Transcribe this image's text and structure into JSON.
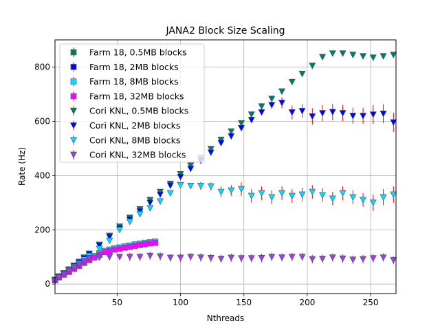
{
  "chart_data": {
    "type": "scatter",
    "title": "JANA2 Block Size Scaling",
    "xlabel": "Nthreads",
    "ylabel": "Rate (Hz)",
    "xlim": [
      1,
      270
    ],
    "ylim": [
      -35,
      900
    ],
    "xticks": [
      50,
      100,
      150,
      200,
      250
    ],
    "yticks": [
      0,
      200,
      400,
      600,
      800
    ],
    "grid": true,
    "legend_position": "top-left",
    "errorbar_color": "#ff0000",
    "series": [
      {
        "name": "Farm 18, 0.5MB blocks",
        "marker": "square",
        "color": "#007f3f",
        "x": [
          1,
          4,
          8,
          12,
          16,
          20,
          24,
          28,
          32,
          36,
          40,
          44,
          48,
          52,
          56,
          60,
          64,
          68,
          72,
          76,
          80
        ],
        "y": [
          15,
          26,
          36,
          46,
          58,
          69,
          80,
          90,
          100,
          110,
          120,
          125,
          130,
          133,
          137,
          140,
          144,
          147,
          150,
          152,
          155
        ]
      },
      {
        "name": "Farm 18, 2MB blocks",
        "marker": "square",
        "color": "#0000ff",
        "x": [
          1,
          4,
          8,
          12,
          16,
          20,
          24,
          28,
          32,
          36,
          40,
          44,
          48,
          52,
          56,
          60,
          64,
          68,
          72,
          76,
          80
        ],
        "y": [
          15,
          27,
          37,
          47,
          59,
          70,
          81,
          92,
          102,
          112,
          121,
          126,
          131,
          134,
          138,
          141,
          145,
          148,
          151,
          153,
          156
        ]
      },
      {
        "name": "Farm 18, 8MB blocks",
        "marker": "square",
        "color": "#00dfff",
        "x": [
          1,
          4,
          8,
          12,
          16,
          20,
          24,
          28,
          32,
          36,
          40,
          44,
          48,
          52,
          56,
          60,
          64,
          68,
          72,
          76,
          80
        ],
        "y": [
          16,
          28,
          38,
          48,
          60,
          71,
          82,
          93,
          103,
          113,
          122,
          127,
          132,
          135,
          139,
          142,
          146,
          149,
          152,
          154,
          157
        ]
      },
      {
        "name": "Farm 18, 32MB blocks",
        "marker": "square",
        "color": "#ff00ff",
        "x": [
          1,
          4,
          8,
          12,
          16,
          20,
          24,
          28,
          32,
          36,
          40,
          44,
          48,
          52,
          56,
          60,
          64,
          68,
          72,
          76,
          80
        ],
        "y": [
          14,
          25,
          35,
          45,
          56,
          67,
          78,
          88,
          98,
          108,
          118,
          122,
          127,
          130,
          134,
          137,
          141,
          144,
          147,
          150,
          152
        ]
      },
      {
        "name": "Cori KNL, 0.5MB blocks",
        "marker": "triangle-down",
        "color": "#007f5f",
        "x": [
          1,
          4,
          8,
          12,
          16,
          20,
          24,
          28,
          36,
          44,
          52,
          60,
          68,
          76,
          84,
          92,
          100,
          108,
          116,
          124,
          132,
          140,
          148,
          156,
          164,
          172,
          180,
          188,
          196,
          204,
          212,
          220,
          228,
          236,
          244,
          252,
          260,
          268
        ],
        "y": [
          15,
          28,
          40,
          54,
          68,
          82,
          98,
          112,
          145,
          178,
          212,
          245,
          276,
          310,
          340,
          370,
          405,
          437,
          465,
          498,
          532,
          563,
          593,
          625,
          655,
          683,
          710,
          745,
          775,
          805,
          837,
          850,
          850,
          845,
          840,
          835,
          840,
          845
        ],
        "yerr": [
          2,
          2,
          2,
          2,
          2,
          2,
          2,
          2,
          3,
          3,
          3,
          3,
          3,
          3,
          3,
          3,
          3,
          3,
          3,
          3,
          3,
          3,
          3,
          3,
          3,
          3,
          3,
          3,
          3,
          3,
          3,
          3,
          3,
          3,
          3,
          3,
          3,
          3
        ]
      },
      {
        "name": "Cori KNL, 2MB blocks",
        "marker": "triangle-down",
        "color": "#0000ff",
        "x": [
          1,
          4,
          8,
          12,
          16,
          20,
          24,
          28,
          36,
          44,
          52,
          60,
          68,
          76,
          84,
          92,
          100,
          108,
          116,
          124,
          132,
          140,
          148,
          156,
          164,
          172,
          180,
          188,
          196,
          204,
          212,
          220,
          228,
          236,
          244,
          252,
          260,
          268
        ],
        "y": [
          14,
          26,
          38,
          52,
          66,
          80,
          95,
          110,
          142,
          174,
          205,
          238,
          268,
          300,
          330,
          363,
          395,
          425,
          455,
          485,
          520,
          545,
          575,
          605,
          633,
          660,
          668,
          633,
          638,
          618,
          630,
          634,
          630,
          620,
          620,
          625,
          628,
          596
        ],
        "yerr": [
          2,
          2,
          2,
          2,
          2,
          2,
          2,
          2,
          3,
          3,
          3,
          3,
          3,
          3,
          3,
          3,
          3,
          3,
          3,
          4,
          4,
          4,
          5,
          8,
          10,
          15,
          20,
          25,
          25,
          30,
          30,
          30,
          30,
          30,
          30,
          35,
          35,
          35
        ]
      },
      {
        "name": "Cori KNL, 8MB blocks",
        "marker": "triangle-down",
        "color": "#00dfff",
        "x": [
          1,
          4,
          8,
          12,
          16,
          20,
          24,
          28,
          36,
          44,
          52,
          60,
          68,
          76,
          84,
          92,
          100,
          108,
          116,
          124,
          132,
          140,
          148,
          156,
          164,
          172,
          180,
          188,
          196,
          204,
          212,
          220,
          228,
          236,
          244,
          252,
          260,
          268
        ],
        "y": [
          13,
          25,
          37,
          50,
          63,
          76,
          90,
          104,
          130,
          160,
          200,
          230,
          258,
          280,
          305,
          335,
          365,
          362,
          362,
          360,
          340,
          345,
          350,
          325,
          335,
          320,
          335,
          325,
          330,
          340,
          328,
          315,
          335,
          320,
          310,
          300,
          320,
          330
        ],
        "yerr": [
          2,
          2,
          2,
          2,
          2,
          2,
          2,
          2,
          3,
          3,
          3,
          3,
          3,
          4,
          5,
          6,
          8,
          10,
          15,
          15,
          20,
          20,
          25,
          25,
          25,
          25,
          25,
          25,
          25,
          25,
          25,
          25,
          25,
          25,
          25,
          30,
          30,
          30
        ]
      },
      {
        "name": "Cori KNL, 32MB blocks",
        "marker": "triangle-down",
        "color": "#9f3fdf",
        "x": [
          1,
          4,
          8,
          12,
          16,
          20,
          24,
          28,
          36,
          44,
          52,
          60,
          68,
          76,
          84,
          92,
          100,
          108,
          116,
          124,
          132,
          140,
          148,
          156,
          164,
          172,
          180,
          188,
          196,
          204,
          212,
          220,
          228,
          236,
          244,
          252,
          260,
          268
        ],
        "y": [
          12,
          24,
          36,
          48,
          60,
          72,
          84,
          96,
          98,
          100,
          100,
          100,
          100,
          104,
          102,
          97,
          97,
          100,
          98,
          96,
          93,
          97,
          95,
          95,
          96,
          100,
          98,
          100,
          100,
          92,
          93,
          98,
          94,
          90,
          92,
          95,
          98,
          88
        ],
        "yerr": [
          2,
          2,
          2,
          2,
          2,
          2,
          2,
          2,
          10,
          12,
          12,
          15,
          15,
          15,
          15,
          15,
          15,
          15,
          15,
          15,
          15,
          15,
          15,
          15,
          15,
          15,
          15,
          15,
          15,
          15,
          15,
          15,
          15,
          15,
          15,
          15,
          15,
          15
        ]
      }
    ]
  }
}
